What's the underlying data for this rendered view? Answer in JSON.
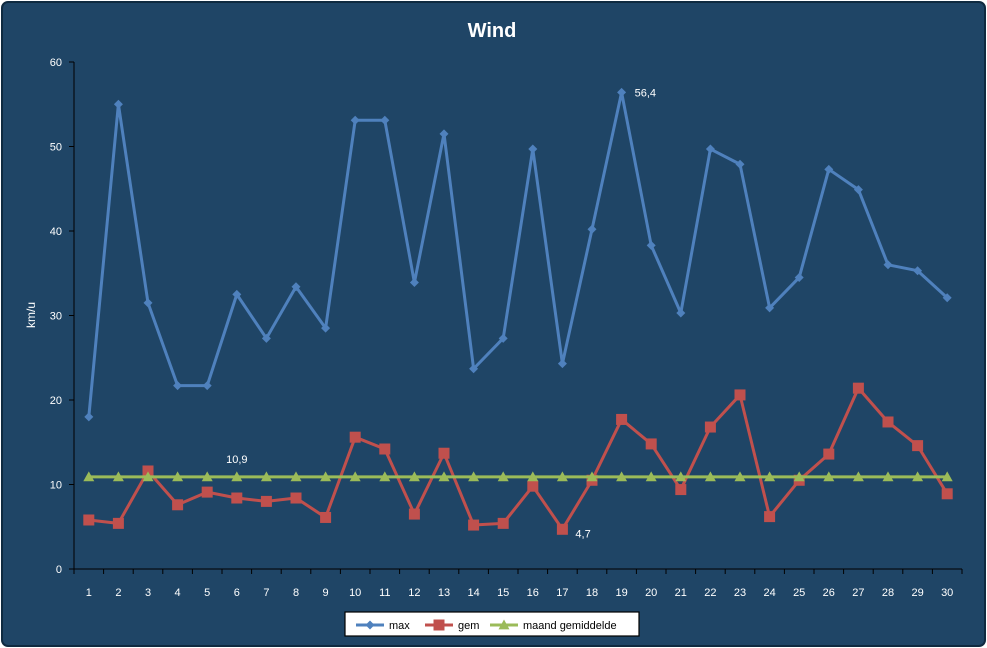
{
  "chart_data": {
    "type": "line",
    "title": "Wind",
    "xlabel": "",
    "ylabel": "km/u",
    "ylim": [
      0,
      60
    ],
    "yticks": [
      0,
      10,
      20,
      30,
      40,
      50,
      60
    ],
    "categories": [
      "1",
      "2",
      "3",
      "4",
      "5",
      "6",
      "7",
      "8",
      "9",
      "10",
      "11",
      "12",
      "13",
      "14",
      "15",
      "16",
      "17",
      "18",
      "19",
      "20",
      "21",
      "22",
      "23",
      "24",
      "25",
      "26",
      "27",
      "28",
      "29",
      "30"
    ],
    "series": [
      {
        "name": "max",
        "color": "#4f81bd",
        "marker": "diamond",
        "values": [
          18.0,
          55.0,
          31.5,
          21.7,
          21.7,
          32.5,
          27.3,
          33.4,
          28.5,
          53.1,
          53.1,
          33.9,
          51.5,
          23.7,
          27.3,
          49.7,
          24.3,
          40.2,
          56.4,
          38.3,
          30.3,
          49.7,
          47.9,
          30.9,
          34.5,
          47.3,
          44.9,
          36.0,
          35.3,
          32.1
        ]
      },
      {
        "name": "gem",
        "color": "#c0504d",
        "marker": "square",
        "values": [
          5.8,
          5.4,
          11.6,
          7.6,
          9.1,
          8.4,
          8.0,
          8.4,
          6.1,
          15.6,
          14.2,
          6.5,
          13.7,
          5.2,
          5.4,
          9.8,
          4.7,
          10.5,
          17.7,
          14.8,
          9.4,
          16.8,
          20.6,
          6.2,
          10.5,
          13.6,
          21.4,
          17.4,
          14.6,
          8.9
        ]
      },
      {
        "name": "maand gemiddelde",
        "color": "#9bbb59",
        "marker": "triangle",
        "values": [
          10.9,
          10.9,
          10.9,
          10.9,
          10.9,
          10.9,
          10.9,
          10.9,
          10.9,
          10.9,
          10.9,
          10.9,
          10.9,
          10.9,
          10.9,
          10.9,
          10.9,
          10.9,
          10.9,
          10.9,
          10.9,
          10.9,
          10.9,
          10.9,
          10.9,
          10.9,
          10.9,
          10.9,
          10.9,
          10.9
        ]
      }
    ],
    "annotations": [
      {
        "text": "56,4",
        "series": 0,
        "index": 18
      },
      {
        "text": "10,9",
        "series": 2,
        "index": 5
      },
      {
        "text": "4,7",
        "series": 1,
        "index": 16
      }
    ],
    "legend_placement": "bottom",
    "grid": false,
    "background": "#1f4566",
    "axis_color": "#000000"
  }
}
